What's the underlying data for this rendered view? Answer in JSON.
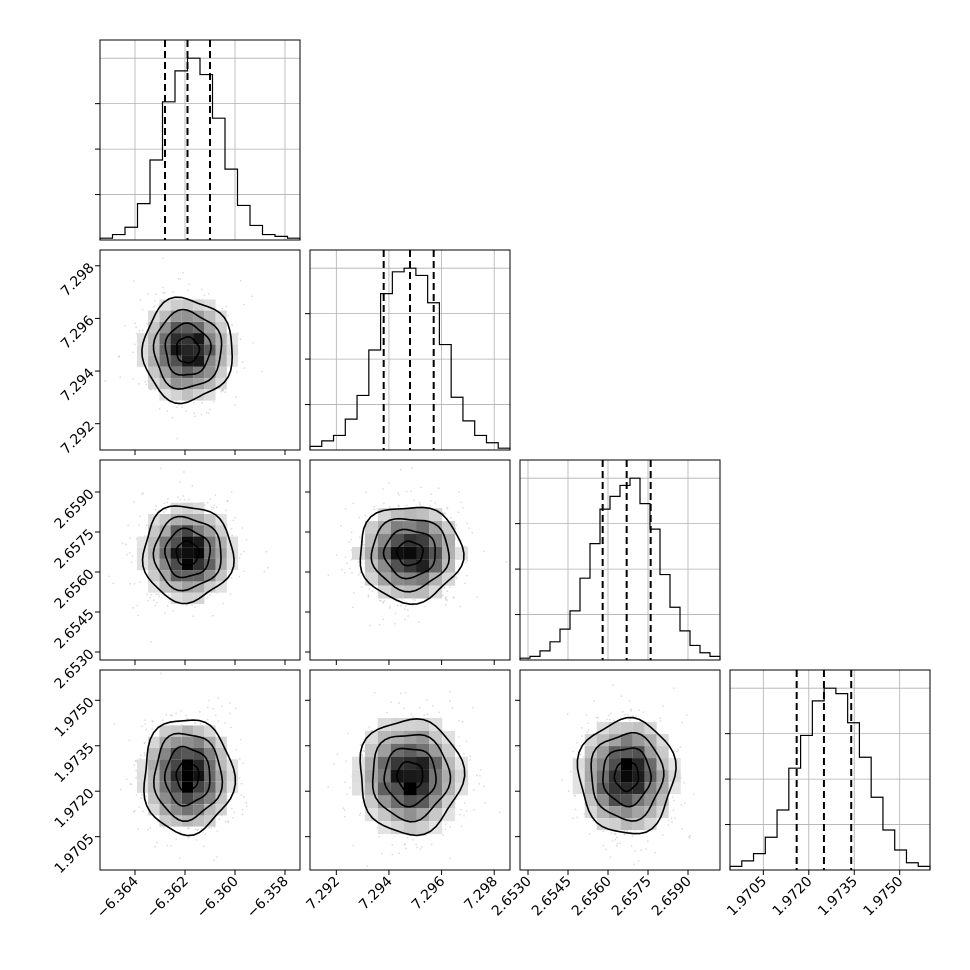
{
  "chart_data": {
    "type": "corner",
    "parameters": [
      {
        "range": [
          -6.3654,
          -6.3574
        ],
        "ticks": [
          -6.364,
          -6.362,
          -6.36,
          -6.358
        ],
        "tick_labels": [
          "−6.364",
          "−6.362",
          "−6.360",
          "−6.358"
        ],
        "mean": -6.3619,
        "sd": 0.0009,
        "quantiles": [
          -6.3628,
          -6.3619,
          -6.361
        ],
        "histogram": [
          0.01,
          0.03,
          0.07,
          0.2,
          0.44,
          0.76,
          0.93,
          1.0,
          0.91,
          0.67,
          0.39,
          0.19,
          0.08,
          0.03,
          0.02,
          0.01
        ]
      },
      {
        "range": [
          7.291,
          7.2986
        ],
        "ticks": [
          7.292,
          7.294,
          7.296,
          7.298
        ],
        "tick_labels": [
          "7.292",
          "7.294",
          "7.296",
          "7.298"
        ],
        "mean": 7.2948,
        "sd": 0.00098,
        "quantiles": [
          7.2938,
          7.2948,
          7.2957
        ],
        "histogram": [
          0.02,
          0.05,
          0.08,
          0.17,
          0.3,
          0.55,
          0.86,
          0.98,
          1.0,
          0.96,
          0.81,
          0.58,
          0.29,
          0.16,
          0.08,
          0.04,
          0.01
        ]
      },
      {
        "range": [
          2.6527,
          2.6602
        ],
        "ticks": [
          2.653,
          2.6545,
          2.656,
          2.6575,
          2.659
        ],
        "tick_labels": [
          "2.6530",
          "2.6545",
          "2.6560",
          "2.6575",
          "2.6590"
        ],
        "mean": 2.6567,
        "sd": 0.0009,
        "quantiles": [
          2.6558,
          2.6567,
          2.6576
        ],
        "histogram": [
          0.01,
          0.02,
          0.05,
          0.1,
          0.17,
          0.27,
          0.45,
          0.64,
          0.83,
          0.9,
          0.96,
          1.0,
          0.86,
          0.72,
          0.47,
          0.29,
          0.16,
          0.08,
          0.04,
          0.02
        ]
      },
      {
        "range": [
          1.9694,
          1.976
        ],
        "ticks": [
          1.9705,
          1.972,
          1.9735,
          1.975
        ],
        "tick_labels": [
          "1.9705",
          "1.9720",
          "1.9735",
          "1.9750"
        ],
        "mean": 1.9725,
        "sd": 0.00095,
        "quantiles": [
          1.9716,
          1.9725,
          1.9734
        ],
        "histogram": [
          0.02,
          0.05,
          0.09,
          0.18,
          0.33,
          0.56,
          0.74,
          0.93,
          1.0,
          0.97,
          0.81,
          0.62,
          0.4,
          0.22,
          0.11,
          0.04,
          0.02
        ]
      }
    ],
    "contour_levels": [
      0.5,
      1.0,
      1.5,
      2.0
    ],
    "grid": true,
    "scatter_color": "#9e9e9e",
    "line_color": "#000000"
  }
}
